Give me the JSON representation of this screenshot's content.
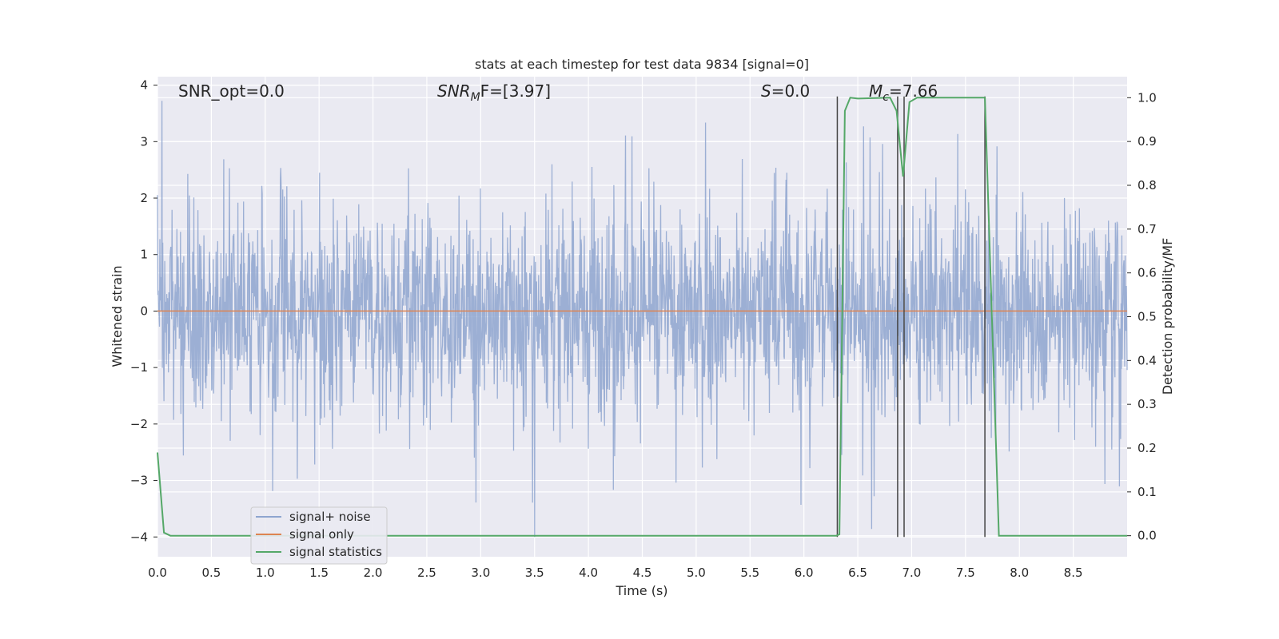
{
  "chart_data": {
    "type": "line",
    "title": "stats at each timestep for test data 9834 [signal=0]",
    "xlabel": "Time (s)",
    "ylabel": "Whitened strain",
    "y2label": "Detection probability/MF",
    "xlim": [
      0.0,
      9.0
    ],
    "ylim": [
      -4.35,
      4.15
    ],
    "y2lim": [
      -0.048,
      1.048
    ],
    "x_ticks": [
      "0.0",
      "0.5",
      "1.0",
      "1.5",
      "2.0",
      "2.5",
      "3.0",
      "3.5",
      "4.0",
      "4.5",
      "5.0",
      "5.5",
      "6.0",
      "6.5",
      "7.0",
      "7.5",
      "8.0",
      "8.5"
    ],
    "y_ticks": [
      "−4",
      "−3",
      "−2",
      "−1",
      "0",
      "1",
      "2",
      "3",
      "4"
    ],
    "y2_ticks": [
      "0.0",
      "0.1",
      "0.2",
      "0.3",
      "0.4",
      "0.5",
      "0.6",
      "0.7",
      "0.8",
      "0.9",
      "1.0"
    ],
    "grid": true,
    "legend_position": "lower-left",
    "annotations": {
      "snr_opt": "SNR_opt=0.0",
      "snr_mf": "SNR_MF=[3.97]",
      "snr_mf_main": "SNR",
      "snr_mf_sub": "M",
      "snr_mf_rest": "F=[3.97]",
      "s": "S=0.0",
      "s_main": "S",
      "s_rest": "=0.0",
      "mc": "M_c=7.66",
      "mc_main": "M",
      "mc_sub": "c",
      "mc_rest": "=7.66"
    },
    "series": [
      {
        "name": "signal+ noise",
        "color": "#8ea5cf",
        "axis": "left",
        "description_level": "noise band roughly ±2 with spikes to about 3.8 and -4",
        "envelope": {
          "typical_abs": 1.5,
          "max": 3.8,
          "min": -4.0
        }
      },
      {
        "name": "signal only",
        "color": "#dd8452",
        "axis": "left",
        "x": [
          0.0,
          9.0
        ],
        "y": [
          0.0,
          0.0
        ]
      },
      {
        "name": "signal statistics",
        "color": "#55a868",
        "axis": "right",
        "x": [
          0.0,
          0.06,
          0.12,
          6.3,
          6.33,
          6.38,
          6.43,
          6.5,
          6.8,
          6.86,
          6.92,
          6.98,
          7.05,
          7.3,
          7.68,
          7.81,
          9.0
        ],
        "y": [
          0.19,
          0.007,
          0.0,
          0.0,
          0.003,
          0.97,
          1.0,
          0.998,
          1.0,
          0.97,
          0.82,
          0.99,
          1.0,
          1.0,
          1.0,
          0.0,
          0.0
        ]
      }
    ],
    "vertical_lines": {
      "color": "#444444",
      "x": [
        6.31,
        6.87,
        6.93,
        7.68
      ],
      "y_top": [
        3.8,
        3.8,
        3.8,
        3.8
      ],
      "y_bottom": [
        -4.0,
        -4.0,
        -4.0,
        -4.0
      ]
    }
  },
  "legend": {
    "items": [
      {
        "label": "signal+ noise",
        "color": "#8ea5cf"
      },
      {
        "label": "signal only",
        "color": "#dd8452"
      },
      {
        "label": "signal statistics",
        "color": "#55a868"
      }
    ]
  }
}
